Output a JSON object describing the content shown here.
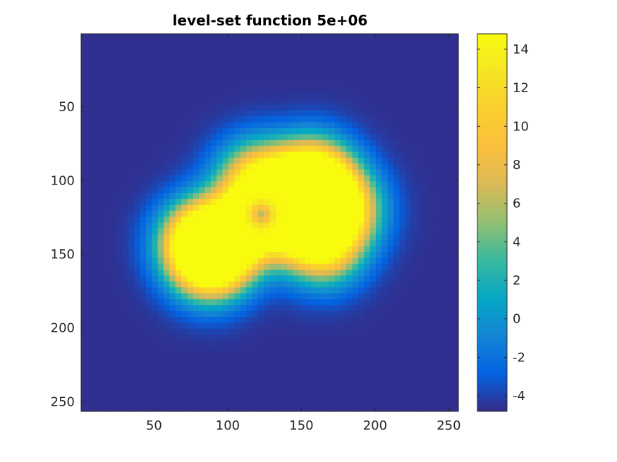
{
  "chart_data": {
    "type": "heatmap",
    "title": "level-set function 5e+06",
    "xlabel": "",
    "ylabel": "",
    "x_range": [
      0.5,
      256.5
    ],
    "y_range": [
      0.5,
      256.5
    ],
    "y_direction": "reversed",
    "x_ticks": [
      50,
      100,
      150,
      200,
      250
    ],
    "y_ticks": [
      50,
      100,
      150,
      200,
      250
    ],
    "colorbar": {
      "colormap": "parula",
      "range": [
        -4.8,
        14.8
      ],
      "ticks": [
        -4,
        -2,
        0,
        2,
        4,
        6,
        8,
        10,
        12,
        14
      ],
      "placement": "right"
    },
    "background_value": -4.6,
    "regions": [
      {
        "x": 148,
        "y": 125,
        "peak": 14.7
      },
      {
        "x": 160,
        "y": 108,
        "peak": 12.2
      },
      {
        "x": 178,
        "y": 120,
        "peak": 11.4
      },
      {
        "x": 165,
        "y": 145,
        "peak": 11.0
      },
      {
        "x": 135,
        "y": 112,
        "peak": 10.6
      },
      {
        "x": 110,
        "y": 133,
        "peak": 12.0
      },
      {
        "x": 90,
        "y": 145,
        "peak": 11.6
      },
      {
        "x": 80,
        "y": 140,
        "peak": 10.5
      },
      {
        "x": 88,
        "y": 157,
        "peak": 10.0
      },
      {
        "x": 118,
        "y": 98,
        "peak": 8.2
      },
      {
        "x": 158,
        "y": 95,
        "peak": 8.8
      }
    ],
    "dips": [
      {
        "x": 123,
        "y": 123,
        "value": 6.2
      }
    ],
    "grid": false
  },
  "colors": {
    "background": "#352a87",
    "axes_box": "#262626"
  }
}
